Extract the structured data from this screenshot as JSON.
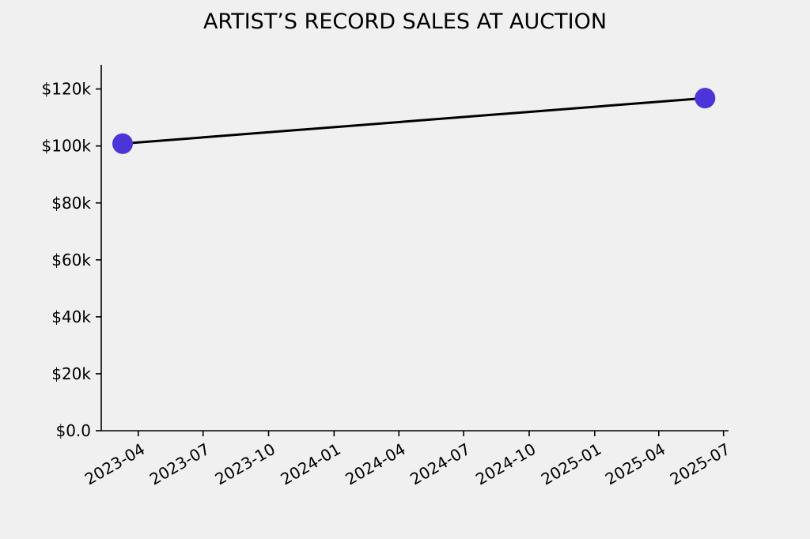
{
  "chart_data": {
    "type": "line",
    "title": "ARTIST’S RECORD SALES AT AUCTION",
    "xlabel": "",
    "ylabel": "",
    "x_axis_type": "date",
    "xlim": [
      "2023-02-08",
      "2025-07-08"
    ],
    "ylim": [
      0,
      128500
    ],
    "x_ticks": [
      "2023-04-01",
      "2023-07-01",
      "2023-10-01",
      "2024-01-01",
      "2024-04-01",
      "2024-07-01",
      "2024-10-01",
      "2025-01-01",
      "2025-04-01",
      "2025-07-01"
    ],
    "x_tick_labels": [
      "2023-04",
      "2023-07",
      "2023-10",
      "2024-01",
      "2024-04",
      "2024-07",
      "2024-10",
      "2025-01",
      "2025-04",
      "2025-07"
    ],
    "y_ticks": [
      0,
      20000,
      40000,
      60000,
      80000,
      100000,
      120000
    ],
    "y_tick_labels": [
      "$0.0",
      "$20k",
      "$40k",
      "$60k",
      "$80k",
      "$100k",
      "$120k"
    ],
    "grid": false,
    "series": [
      {
        "points": [
          {
            "x": "2023-03-10",
            "y": 100800
          },
          {
            "x": "2025-06-05",
            "y": 116800
          }
        ],
        "line_color": "#000000",
        "marker_color": "#4b35d8"
      }
    ]
  }
}
